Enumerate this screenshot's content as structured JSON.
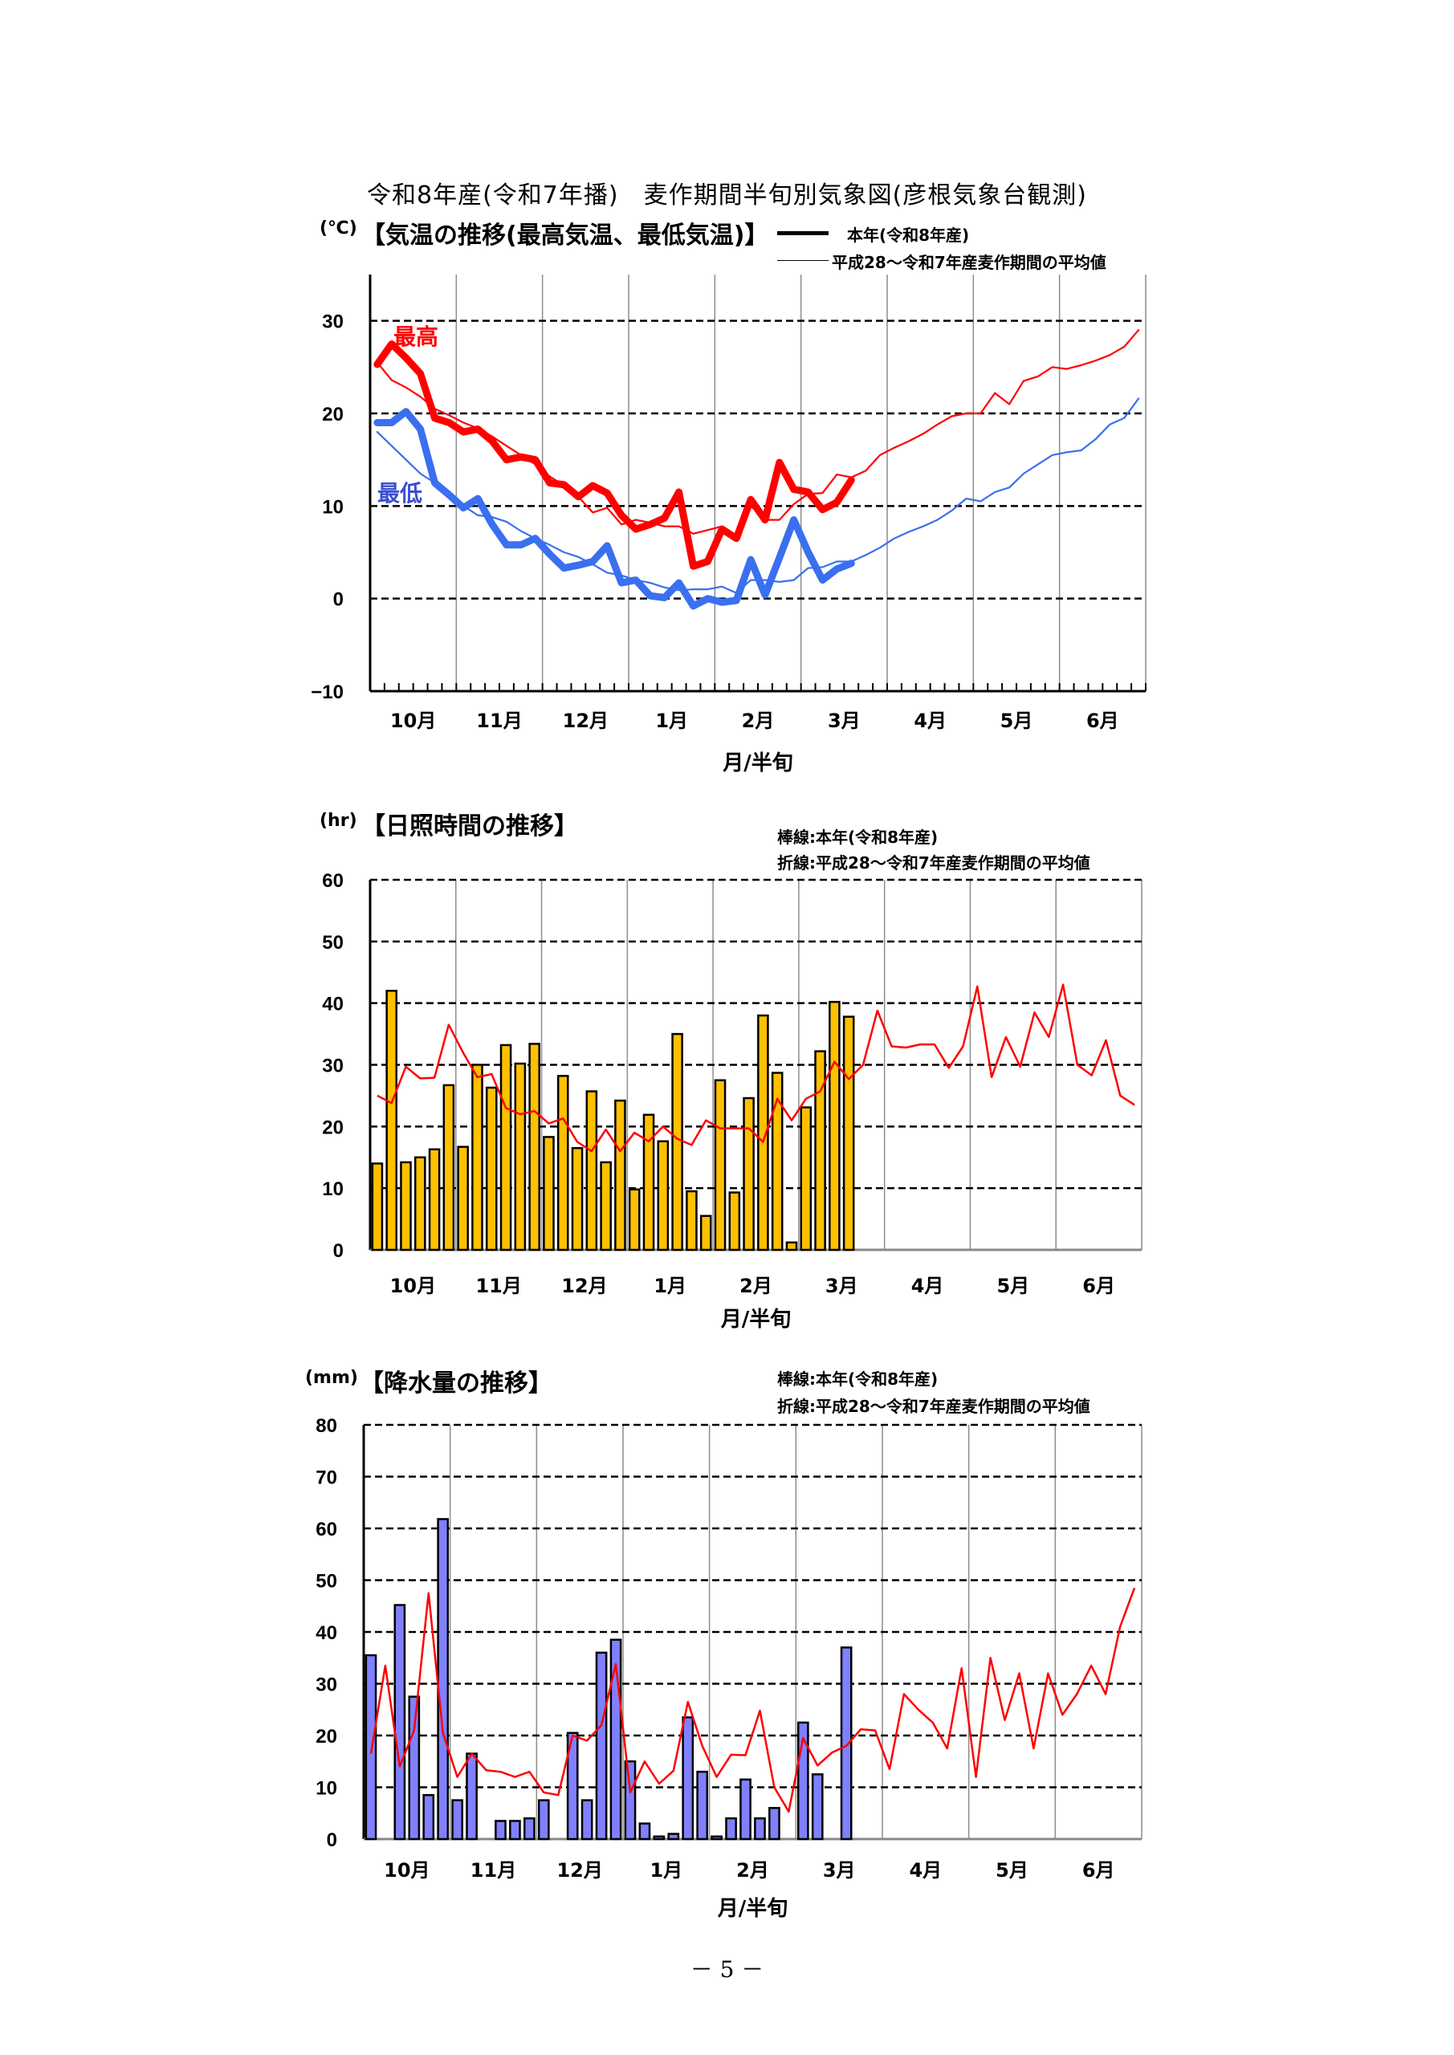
{
  "title": "令和8年産(令和7年播)　麦作期間半旬別気象図(彦根気象台観測)",
  "page_number": "－ 5 －",
  "chart_data": [
    {
      "type": "line",
      "unit": "(℃)",
      "title": "【気温の推移(最高気温、最低気温)】",
      "legend": {
        "current": "本年(令和8年産)",
        "average": "平成28～令和7年産麦作期間の平均値"
      },
      "series_labels": {
        "max": "最高",
        "min": "最低"
      },
      "xlabel": "月/半旬",
      "months": [
        "10月",
        "11月",
        "12月",
        "1月",
        "2月",
        "3月",
        "4月",
        "5月",
        "6月"
      ],
      "periods_per_month": 6,
      "ylim": [
        -10,
        35
      ],
      "yticks": [
        30,
        20,
        10,
        0,
        -10
      ],
      "series": [
        {
          "name": "最高(本年)",
          "color": "#ff0000",
          "width": "thick",
          "values": [
            25.3,
            27.5,
            26,
            24.3,
            19.5,
            19,
            18,
            18.3,
            17,
            15,
            15.3,
            15,
            12.5,
            12.3,
            11,
            12.2,
            11.4,
            9,
            7.5,
            8,
            8.7,
            11.5,
            3.5,
            4,
            7.5,
            6.5,
            10.7,
            8.5,
            14.7,
            11.8,
            11.5,
            9.6,
            10.4,
            12.8
          ]
        },
        {
          "name": "最高(平均)",
          "color": "#ff0000",
          "width": "thin",
          "values": [
            25.5,
            23.6,
            22.8,
            21.8,
            20.5,
            19.8,
            19,
            18.4,
            17.5,
            16.5,
            15.5,
            14.5,
            13.2,
            12.2,
            11,
            9.3,
            9.8,
            8,
            8.5,
            8.2,
            7.8,
            7.8,
            7,
            7.4,
            7.8,
            6.3,
            10,
            8.5,
            8.5,
            10.2,
            11.3,
            11.4,
            13.4,
            13.1,
            13.8,
            15.5,
            16.3,
            17,
            17.8,
            18.8,
            19.7,
            20,
            20,
            22.2,
            21,
            23.5,
            24,
            25,
            24.8,
            25.2,
            25.7,
            26.3,
            27.2,
            29
          ]
        },
        {
          "name": "最低(本年)",
          "color": "#3a6ff0",
          "width": "thick",
          "values": [
            19,
            19,
            20.2,
            18.3,
            12.5,
            11.2,
            9.8,
            10.8,
            8,
            5.8,
            5.8,
            6.5,
            4.8,
            3.3,
            3.6,
            4,
            5.7,
            1.7,
            2,
            0.3,
            0.1,
            1.7,
            -0.8,
            0,
            -0.4,
            -0.2,
            4.2,
            0.4,
            4.4,
            8.5,
            5,
            2,
            3.2,
            3.8
          ]
        },
        {
          "name": "最低(平均)",
          "color": "#3a6ff0",
          "width": "thin",
          "values": [
            18,
            16.5,
            15,
            13.5,
            12.5,
            11,
            10,
            9,
            8.8,
            8.3,
            7.3,
            6.5,
            5.8,
            5,
            4.5,
            3.7,
            2.8,
            2.5,
            2,
            1.7,
            1.2,
            0.9,
            1,
            1,
            1.3,
            0.6,
            2,
            2,
            1.8,
            2,
            3.3,
            3.4,
            4,
            4,
            4.7,
            5.5,
            6.5,
            7.2,
            7.8,
            8.5,
            9.5,
            10.8,
            10.5,
            11.5,
            12,
            13.5,
            14.5,
            15.5,
            15.8,
            16,
            17.2,
            18.8,
            19.5,
            21.6
          ]
        }
      ]
    },
    {
      "type": "bar",
      "unit": "(hr)",
      "title": "【日照時間の推移】",
      "legend": {
        "bars": "棒線:本年(令和8年産)",
        "line": "折線:平成28～令和7年産麦作期間の平均値"
      },
      "xlabel": "月/半旬",
      "months": [
        "10月",
        "11月",
        "12月",
        "1月",
        "2月",
        "3月",
        "4月",
        "5月",
        "6月"
      ],
      "periods_per_month": 6,
      "ylim": [
        0,
        60
      ],
      "yticks": [
        60,
        50,
        40,
        30,
        20,
        10,
        0
      ],
      "bar_color": "#ffc000",
      "line_color": "#ff0000",
      "bars": [
        14,
        42,
        14.2,
        15,
        16.3,
        26.7,
        16.7,
        30,
        26.3,
        33.2,
        30.2,
        33.4,
        18.3,
        28.2,
        16.5,
        25.7,
        14.2,
        24.2,
        9.8,
        21.9,
        17.6,
        35,
        9.5,
        5.5,
        27.5,
        9.3,
        24.6,
        38,
        28.7,
        1.2,
        23.1,
        32.2,
        40.2,
        37.8
      ],
      "line": [
        25,
        23.8,
        29.7,
        27.8,
        27.9,
        36.5,
        32,
        28,
        28.5,
        23,
        22,
        22.5,
        20.5,
        21.3,
        17.5,
        16,
        19.5,
        16,
        19,
        17.6,
        20,
        18,
        17,
        21,
        19.7,
        19.7,
        19.7,
        17.5,
        24.5,
        21,
        24.5,
        25.7,
        30.5,
        27.7,
        30,
        38.8,
        33,
        32.8,
        33.3,
        33.3,
        29.5,
        33,
        42.7,
        28,
        34.5,
        29.7,
        38.5,
        34.5,
        43,
        30,
        28.3,
        34,
        25,
        23.5
      ]
    },
    {
      "type": "bar",
      "unit": "(mm)",
      "title": "【降水量の推移】",
      "legend": {
        "bars": "棒線:本年(令和8年産)",
        "line": "折線:平成28～令和7年産麦作期間の平均値"
      },
      "xlabel": "月/半旬",
      "months": [
        "10月",
        "11月",
        "12月",
        "1月",
        "2月",
        "3月",
        "4月",
        "5月",
        "6月"
      ],
      "periods_per_month": 6,
      "ylim": [
        0,
        80
      ],
      "yticks": [
        80,
        70,
        60,
        50,
        40,
        30,
        20,
        10,
        0
      ],
      "bar_color": "#8080ff",
      "line_color": "#ff0000",
      "bars": [
        35.5,
        0,
        45.2,
        27.5,
        8.5,
        61.8,
        7.5,
        16.5,
        0,
        3.5,
        3.5,
        4,
        7.5,
        0,
        20.5,
        7.5,
        36,
        38.5,
        15,
        3,
        0.5,
        1,
        23.5,
        13,
        0.5,
        4,
        11.5,
        4,
        6,
        0,
        22.5,
        12.5,
        0,
        37
      ],
      "line": [
        16.5,
        33.5,
        14,
        21,
        47.5,
        20.5,
        12,
        16.5,
        13.3,
        13,
        12,
        13,
        9,
        8.5,
        20,
        19,
        22,
        33.8,
        9,
        15,
        10.7,
        13.2,
        26.5,
        18,
        12,
        16.3,
        16.2,
        24.8,
        10,
        5.3,
        19.5,
        14.2,
        16.7,
        18,
        21.2,
        21,
        13.5,
        28,
        25,
        22.5,
        17.5,
        33,
        12,
        35,
        23,
        32,
        17.5,
        32,
        24,
        28,
        33.5,
        28,
        41,
        48.5
      ]
    }
  ]
}
